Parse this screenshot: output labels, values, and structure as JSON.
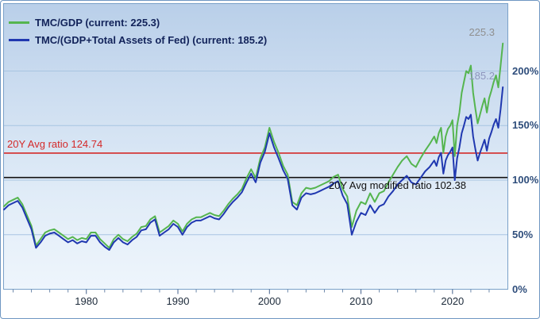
{
  "legend": [
    {
      "label": "TMC/GDP (current: 225.3)",
      "color": "#55b54f"
    },
    {
      "label": "TMC/(GDP+Total Assets of Fed) (current: 185.2)",
      "color": "#2038b0"
    }
  ],
  "avg_lines": [
    {
      "label": "20Y Avg ratio 124.74",
      "value": 124.74,
      "color": "#d42a2a"
    },
    {
      "label": "20Y Avg modified ratio 102.38",
      "value": 102.38,
      "color": "#111111"
    }
  ],
  "current_labels": [
    {
      "text": "225.3",
      "v": 225.3,
      "color": "#8f8f8f"
    },
    {
      "text": "185.2",
      "v": 185.2,
      "color": "#8d95bd"
    }
  ],
  "axes": {
    "y_ticks": [
      {
        "v": 0,
        "label": "0%"
      },
      {
        "v": 50,
        "label": "50%"
      },
      {
        "v": 100,
        "label": "100%"
      },
      {
        "v": 150,
        "label": "150%"
      },
      {
        "v": 200,
        "label": "200%"
      }
    ],
    "x_ticks": [
      1980,
      1990,
      2000,
      2010,
      2020
    ]
  },
  "chart_data": {
    "type": "line",
    "title": "",
    "xlabel": "",
    "ylabel": "",
    "xlim": [
      1971,
      2026
    ],
    "ylim": [
      0,
      260
    ],
    "grid": true,
    "legend_position": "top-left",
    "x": [
      1971,
      1971.5,
      1972,
      1972.5,
      1973,
      1973.5,
      1974,
      1974.5,
      1975,
      1975.5,
      1976,
      1976.5,
      1977,
      1977.5,
      1978,
      1978.5,
      1979,
      1979.5,
      1980,
      1980.5,
      1981,
      1981.5,
      1982,
      1982.5,
      1983,
      1983.5,
      1984,
      1984.5,
      1985,
      1985.5,
      1986,
      1986.5,
      1987,
      1987.5,
      1988,
      1988.5,
      1989,
      1989.5,
      1990,
      1990.5,
      1991,
      1991.5,
      1992,
      1992.5,
      1993,
      1993.5,
      1994,
      1994.5,
      1995,
      1995.5,
      1996,
      1996.5,
      1997,
      1997.5,
      1998,
      1998.5,
      1999,
      1999.5,
      2000,
      2000.5,
      2001,
      2001.5,
      2002,
      2002.5,
      2003,
      2003.5,
      2004,
      2004.5,
      2005,
      2005.5,
      2006,
      2006.5,
      2007,
      2007.5,
      2008,
      2008.5,
      2009,
      2009.5,
      2010,
      2010.5,
      2011,
      2011.5,
      2012,
      2012.5,
      2013,
      2013.5,
      2014,
      2014.5,
      2015,
      2015.5,
      2016,
      2016.5,
      2017,
      2017.5,
      2018,
      2018.25,
      2018.5,
      2018.75,
      2019,
      2019.25,
      2019.5,
      2019.75,
      2020,
      2020.25,
      2020.5,
      2020.75,
      2021,
      2021.25,
      2021.5,
      2021.75,
      2022,
      2022.25,
      2022.5,
      2022.75,
      2023,
      2023.25,
      2023.5,
      2023.75,
      2024,
      2024.25,
      2024.5,
      2024.75,
      2025,
      2025.25,
      2025.5
    ],
    "series": [
      {
        "name": "TMC/GDP",
        "color": "#55b54f",
        "current": 225.3,
        "values": [
          76,
          80,
          82,
          84,
          78,
          68,
          58,
          40,
          46,
          52,
          54,
          55,
          52,
          49,
          46,
          48,
          45,
          47,
          46,
          52,
          52,
          46,
          42,
          38,
          46,
          50,
          46,
          44,
          48,
          51,
          57,
          58,
          64,
          67,
          52,
          55,
          58,
          63,
          60,
          53,
          60,
          64,
          66,
          66,
          68,
          70,
          68,
          67,
          72,
          78,
          83,
          87,
          92,
          102,
          110,
          102,
          120,
          130,
          148,
          135,
          125,
          113,
          105,
          80,
          77,
          88,
          93,
          92,
          93,
          95,
          97,
          99,
          103,
          105,
          92,
          85,
          57,
          72,
          80,
          78,
          88,
          80,
          88,
          90,
          98,
          105,
          112,
          118,
          122,
          115,
          112,
          120,
          127,
          133,
          140,
          134,
          143,
          148,
          125,
          140,
          147,
          150,
          155,
          122,
          150,
          162,
          180,
          190,
          200,
          198,
          205,
          180,
          165,
          152,
          160,
          168,
          175,
          162,
          175,
          182,
          190,
          196,
          185,
          205,
          225.3
        ]
      },
      {
        "name": "TMC/(GDP+Total Assets of Fed)",
        "color": "#2038b0",
        "current": 185.2,
        "values": [
          73,
          77,
          79,
          81,
          75,
          65,
          55,
          38,
          43,
          49,
          51,
          52,
          49,
          46,
          43,
          45,
          42,
          44,
          43,
          49,
          49,
          43,
          39,
          36,
          43,
          47,
          43,
          41,
          45,
          48,
          54,
          55,
          61,
          64,
          49,
          52,
          55,
          60,
          57,
          50,
          57,
          61,
          63,
          63,
          65,
          67,
          65,
          64,
          69,
          75,
          80,
          84,
          89,
          98,
          106,
          98,
          116,
          126,
          143,
          130,
          120,
          109,
          101,
          77,
          73,
          84,
          88,
          87,
          88,
          90,
          92,
          94,
          97,
          99,
          86,
          78,
          50,
          62,
          70,
          68,
          77,
          70,
          76,
          78,
          85,
          90,
          96,
          100,
          104,
          98,
          96,
          102,
          108,
          112,
          118,
          113,
          121,
          125,
          106,
          118,
          123,
          126,
          130,
          100,
          120,
          130,
          143,
          150,
          158,
          156,
          160,
          140,
          128,
          118,
          125,
          131,
          137,
          127,
          138,
          144,
          151,
          156,
          148,
          165,
          185.2
        ]
      }
    ]
  }
}
